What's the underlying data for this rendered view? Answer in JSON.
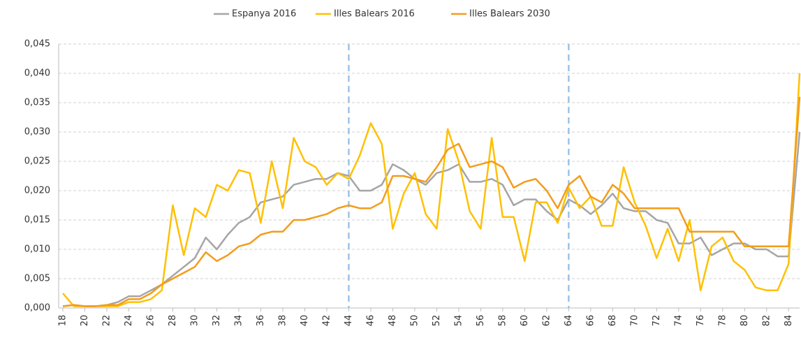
{
  "chart_data": {
    "type": "line",
    "categories": [
      18,
      null,
      20,
      null,
      22,
      null,
      24,
      null,
      26,
      null,
      28,
      null,
      30,
      null,
      32,
      null,
      34,
      null,
      36,
      null,
      38,
      null,
      40,
      null,
      42,
      null,
      44,
      null,
      46,
      null,
      48,
      null,
      50,
      null,
      52,
      null,
      54,
      null,
      56,
      null,
      58,
      null,
      60,
      null,
      62,
      null,
      64,
      null,
      66,
      null,
      68,
      null,
      70,
      null,
      72,
      null,
      74,
      null,
      76,
      null,
      78,
      null,
      80,
      null,
      82,
      null,
      84,
      null
    ],
    "series": [
      {
        "name": "Espanya 2016",
        "color": "#a5a5a5",
        "values": [
          0.0003,
          0.0005,
          0.0003,
          0.0003,
          0.0005,
          0.001,
          0.002,
          0.002,
          0.003,
          0.004,
          0.0055,
          0.007,
          0.0085,
          0.012,
          0.01,
          0.0125,
          0.0145,
          0.0155,
          0.018,
          0.0185,
          0.019,
          0.021,
          0.0215,
          0.022,
          0.022,
          0.023,
          0.0225,
          0.02,
          0.02,
          0.021,
          0.0245,
          0.0235,
          0.022,
          0.021,
          0.023,
          0.0235,
          0.0245,
          0.0215,
          0.0215,
          0.022,
          0.021,
          0.0175,
          0.0185,
          0.0185,
          0.0165,
          0.015,
          0.0185,
          0.0175,
          0.016,
          0.0175,
          0.0195,
          0.017,
          0.0165,
          0.0165,
          0.015,
          0.0145,
          0.011,
          0.011,
          0.012,
          0.009,
          0.01,
          0.011,
          0.011,
          0.01,
          0.01,
          0.0088,
          0.0088,
          0.03
        ]
      },
      {
        "name": "Illes Balears 2016",
        "color": "#ffc000",
        "values": [
          0.0025,
          0.0003,
          0.0003,
          0.0003,
          0.0003,
          0.0003,
          0.001,
          0.001,
          0.0015,
          0.003,
          0.0175,
          0.009,
          0.017,
          0.0155,
          0.021,
          0.02,
          0.0235,
          0.023,
          0.0145,
          0.025,
          0.017,
          0.029,
          0.025,
          0.024,
          0.021,
          0.023,
          0.022,
          0.026,
          0.0315,
          0.028,
          0.0135,
          0.0195,
          0.023,
          0.016,
          0.0135,
          0.0305,
          0.025,
          0.0165,
          0.0135,
          0.029,
          0.0155,
          0.0155,
          0.008,
          0.018,
          0.018,
          0.0145,
          0.0205,
          0.017,
          0.019,
          0.014,
          0.014,
          0.024,
          0.018,
          0.014,
          0.0085,
          0.0135,
          0.008,
          0.015,
          0.003,
          0.0105,
          0.012,
          0.008,
          0.0065,
          0.0035,
          0.003,
          0.003,
          0.0075,
          0.04
        ]
      },
      {
        "name": "Illes Balears 2030",
        "color": "#f39c1a",
        "values": [
          0.0003,
          0.0005,
          0.0003,
          0.0003,
          0.0005,
          0.0005,
          0.0015,
          0.0015,
          0.0025,
          0.004,
          0.005,
          0.006,
          0.007,
          0.0095,
          0.008,
          0.009,
          0.0105,
          0.011,
          0.0125,
          0.013,
          0.013,
          0.015,
          0.015,
          0.0155,
          0.016,
          0.017,
          0.0175,
          0.017,
          0.017,
          0.018,
          0.0225,
          0.0225,
          0.022,
          0.0215,
          0.024,
          0.027,
          0.028,
          0.024,
          0.0245,
          0.025,
          0.024,
          0.0205,
          0.0215,
          0.022,
          0.02,
          0.017,
          0.021,
          0.0225,
          0.019,
          0.018,
          0.021,
          0.0195,
          0.017,
          0.017,
          0.017,
          0.017,
          0.017,
          0.013,
          0.013,
          0.013,
          0.013,
          0.013,
          0.0105,
          0.0105,
          0.0105,
          0.0105,
          0.0105,
          0.036
        ]
      }
    ],
    "ylim": [
      0,
      0.045
    ],
    "yticks": [
      {
        "value": 0,
        "label": "0,000"
      },
      {
        "value": 0.005,
        "label": "0,005"
      },
      {
        "value": 0.01,
        "label": "0,010"
      },
      {
        "value": 0.015,
        "label": "0,015"
      },
      {
        "value": 0.02,
        "label": "0,020"
      },
      {
        "value": 0.025,
        "label": "0,025"
      },
      {
        "value": 0.03,
        "label": "0,030"
      },
      {
        "value": 0.035,
        "label": "0,035"
      },
      {
        "value": 0.04,
        "label": "0,040"
      },
      {
        "value": 0.045,
        "label": "0,045"
      }
    ],
    "grid": true,
    "legend": "top",
    "vlines": [
      44,
      64
    ],
    "vline_color": "#9dc3e6"
  }
}
